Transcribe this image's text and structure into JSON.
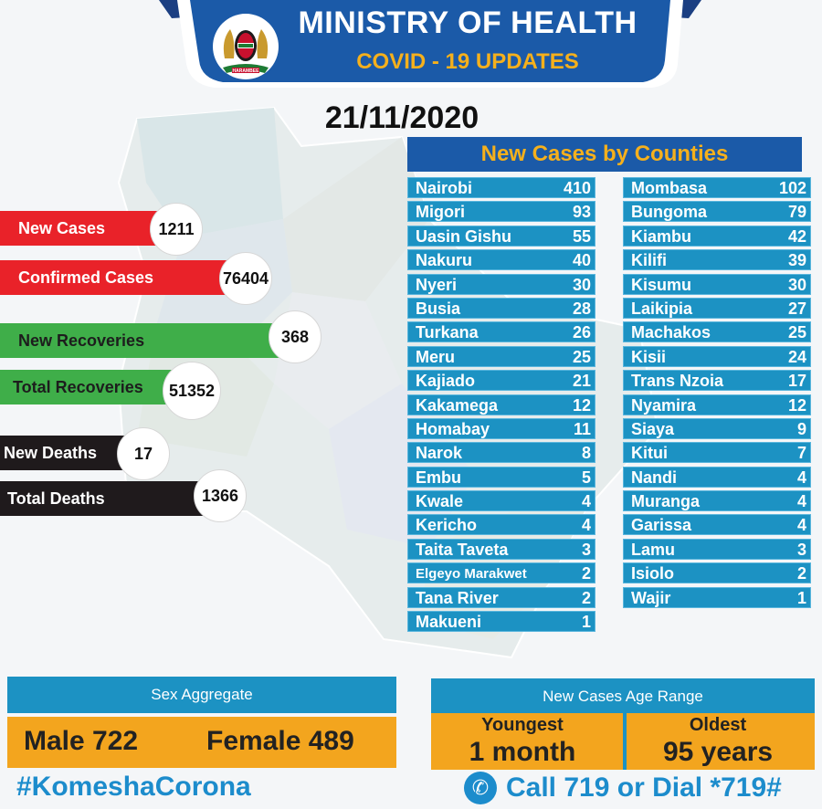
{
  "header": {
    "title": "MINISTRY OF HEALTH",
    "subtitle": "COVID - 19 UPDATES",
    "coat_motto": "HARAMBEE"
  },
  "date": "21/11/2020",
  "stats": {
    "new_cases": {
      "label": "New Cases",
      "value": "1211"
    },
    "confirmed_cases": {
      "label": "Confirmed Cases",
      "value": "76404"
    },
    "new_recoveries": {
      "label": "New Recoveries",
      "value": "368"
    },
    "total_recoveries": {
      "label": "Total Recoveries",
      "value": "51352"
    },
    "new_deaths": {
      "label": "New Deaths",
      "value": "17"
    },
    "total_deaths": {
      "label": "Total Deaths",
      "value": "1366"
    }
  },
  "counties": {
    "title": "New Cases by Counties",
    "left": [
      {
        "name": "Nairobi",
        "value": "410"
      },
      {
        "name": "Migori",
        "value": "93"
      },
      {
        "name": "Uasin Gishu",
        "value": "55"
      },
      {
        "name": "Nakuru",
        "value": "40"
      },
      {
        "name": "Nyeri",
        "value": "30"
      },
      {
        "name": "Busia",
        "value": "28"
      },
      {
        "name": "Turkana",
        "value": "26"
      },
      {
        "name": "Meru",
        "value": "25"
      },
      {
        "name": "Kajiado",
        "value": "21"
      },
      {
        "name": "Kakamega",
        "value": "12"
      },
      {
        "name": "Homabay",
        "value": "11"
      },
      {
        "name": "Narok",
        "value": "8"
      },
      {
        "name": "Embu",
        "value": "5"
      },
      {
        "name": "Kwale",
        "value": "4"
      },
      {
        "name": "Kericho",
        "value": "4"
      },
      {
        "name": "Taita Taveta",
        "value": "3"
      },
      {
        "name": "Elgeyo Marakwet",
        "value": "2"
      },
      {
        "name": "Tana River",
        "value": "2"
      },
      {
        "name": "Makueni",
        "value": "1"
      }
    ],
    "right": [
      {
        "name": "Mombasa",
        "value": "102"
      },
      {
        "name": "Bungoma",
        "value": "79"
      },
      {
        "name": "Kiambu",
        "value": "42"
      },
      {
        "name": "Kilifi",
        "value": "39"
      },
      {
        "name": "Kisumu",
        "value": "30"
      },
      {
        "name": "Laikipia",
        "value": "27"
      },
      {
        "name": "Machakos",
        "value": "25"
      },
      {
        "name": "Kisii",
        "value": "24"
      },
      {
        "name": "Trans Nzoia",
        "value": "17"
      },
      {
        "name": "Nyamira",
        "value": "12"
      },
      {
        "name": "Siaya",
        "value": "9"
      },
      {
        "name": "Kitui",
        "value": "7"
      },
      {
        "name": "Nandi",
        "value": "4"
      },
      {
        "name": "Muranga",
        "value": "4"
      },
      {
        "name": "Garissa",
        "value": "4"
      },
      {
        "name": "Lamu",
        "value": "3"
      },
      {
        "name": "Isiolo",
        "value": "2"
      },
      {
        "name": "Wajir",
        "value": "1"
      }
    ]
  },
  "sex_aggregate": {
    "title": "Sex Aggregate",
    "male_label": "Male",
    "male_value": "722",
    "female_label": "Female",
    "female_value": "489"
  },
  "age_range": {
    "title": "New Cases Age Range",
    "youngest_label": "Youngest",
    "youngest_value": "1 month",
    "oldest_label": "Oldest",
    "oldest_value": "95 years"
  },
  "footer": {
    "hashtag": "#KomeshaCorona",
    "call_text": "Call  719 or Dial *719#"
  },
  "colors": {
    "banner_blue": "#1b5aa8",
    "accent_gold": "#f5b01c",
    "row_blue": "#1c92c3",
    "red": "#e92229",
    "green": "#3fae49",
    "black": "#1f1a1c",
    "panel_orange": "#f3a51e"
  },
  "icons": {
    "coat_of_arms": "kenya-coat-of-arms-icon",
    "phone": "phone-icon"
  }
}
